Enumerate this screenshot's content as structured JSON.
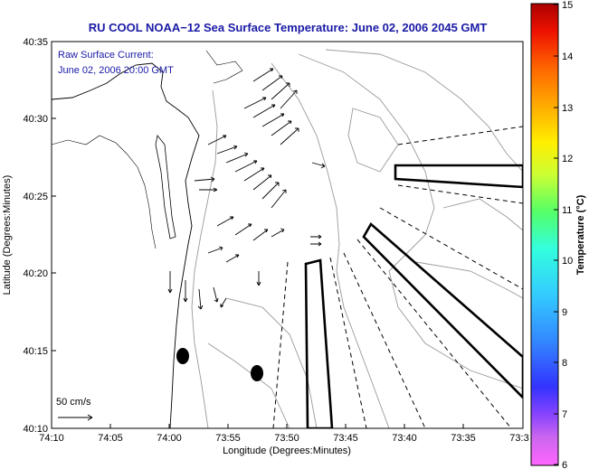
{
  "chart_data": {
    "type": "map",
    "title": "RU COOL  NOAA−12  Sea Surface Temperature:  June 02, 2006 2045 GMT",
    "subtitle_lines": [
      "Raw Surface Current:",
      "June 02, 2006 20:00 GMT"
    ],
    "xlabel": "Longitude (Degrees:Minutes)",
    "ylabel": "Latitude (Degrees:Minutes)",
    "x_ticks": [
      "74:10",
      "74:05",
      "74:00",
      "73:55",
      "73:50",
      "73:45",
      "73:40",
      "73:35",
      "73:3"
    ],
    "y_ticks": [
      "40:35",
      "40:30",
      "40:25",
      "40:20",
      "40:15",
      "40:10"
    ],
    "colorbar": {
      "label": "Temperature (°C)",
      "ticks": [
        "15",
        "14",
        "13",
        "12",
        "11",
        "10",
        "9",
        "8",
        "7",
        "6"
      ],
      "range": [
        6,
        15
      ]
    },
    "scale_label": "50 cm/s"
  }
}
